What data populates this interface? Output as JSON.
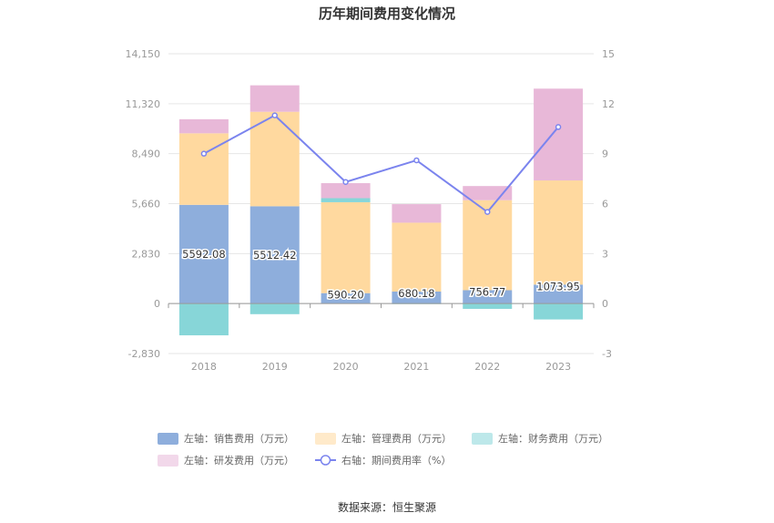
{
  "chart_data": {
    "type": "bar",
    "title": "历年期间费用变化情况",
    "categories": [
      "2018",
      "2019",
      "2020",
      "2021",
      "2022",
      "2023"
    ],
    "left_axis": {
      "ticks": [
        "14,150",
        "11,320",
        "8,490",
        "5,660",
        "2,830",
        "0",
        "-2,830"
      ],
      "ylim": [
        -2830,
        14150
      ]
    },
    "right_axis": {
      "ticks": [
        "15",
        "12",
        "9",
        "6",
        "3",
        "0",
        "-3"
      ],
      "ylim": [
        -3,
        15
      ]
    },
    "series": [
      {
        "name": "左轴：销售费用（万元）",
        "color": "#8eaedc",
        "kind": "bar",
        "values": [
          5592.08,
          5512.42,
          590.2,
          680.18,
          756.77,
          1073.95
        ],
        "labels": [
          "5592.08",
          "5512.42",
          "590.20",
          "680.18",
          "756.77",
          "1073.95"
        ]
      },
      {
        "name": "左轴：管理费用（万元）",
        "color": "#ffd99f",
        "kind": "bar",
        "values": [
          4050,
          5350,
          5150,
          3900,
          5100,
          5900
        ]
      },
      {
        "name": "左轴：财务费用（万元）",
        "color": "#87d6d8",
        "kind": "bar",
        "values": [
          -1800,
          -600,
          230,
          -30,
          -300,
          -900
        ]
      },
      {
        "name": "左轴：研发费用（万元）",
        "color": "#e8b8d8",
        "kind": "bar",
        "values": [
          800,
          1500,
          850,
          1050,
          800,
          5200
        ]
      },
      {
        "name": "右轴：期间费用率（%）",
        "color": "#7b84ee",
        "kind": "line",
        "values": [
          9.0,
          11.3,
          7.3,
          8.6,
          5.5,
          10.6
        ]
      }
    ]
  },
  "source": "数据来源：恒生聚源"
}
